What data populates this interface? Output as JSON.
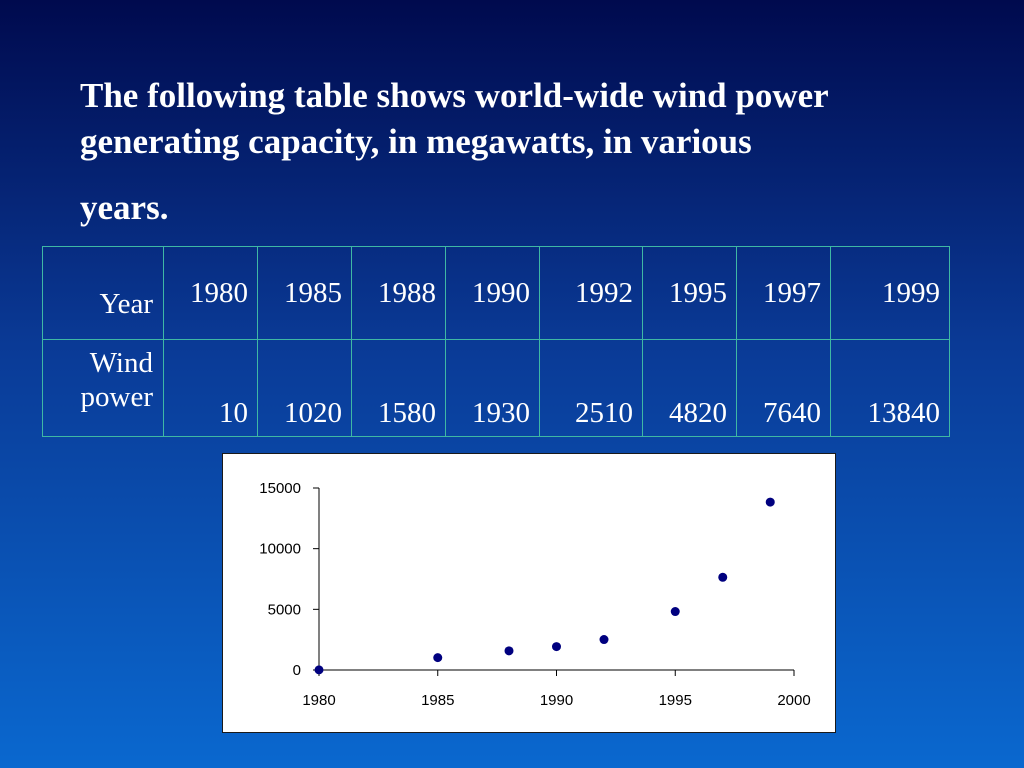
{
  "intro": {
    "line1": "The following table shows world-wide wind power",
    "line2": "generating capacity, in megawatts, in various",
    "line3": "years."
  },
  "table": {
    "row_labels": [
      "Year",
      "Wind power"
    ],
    "years": [
      "1980",
      "1985",
      "1988",
      "1990",
      "1992",
      "1995",
      "1997",
      "1999"
    ],
    "power": [
      "10",
      "1020",
      "1580",
      "1930",
      "2510",
      "4820",
      "7640",
      "13840"
    ]
  },
  "chart_data": {
    "type": "scatter",
    "x": [
      1980,
      1985,
      1988,
      1990,
      1992,
      1995,
      1997,
      1999
    ],
    "y": [
      10,
      1020,
      1580,
      1930,
      2510,
      4820,
      7640,
      13840
    ],
    "xlim": [
      1980,
      2000
    ],
    "ylim": [
      0,
      15000
    ],
    "x_ticks": [
      "1980",
      "1985",
      "1990",
      "1995",
      "2000"
    ],
    "y_ticks": [
      "0",
      "5000",
      "10000",
      "15000"
    ],
    "grid": false,
    "legend": "none",
    "point_color": "#00007f",
    "title": "",
    "xlabel": "",
    "ylabel": ""
  }
}
